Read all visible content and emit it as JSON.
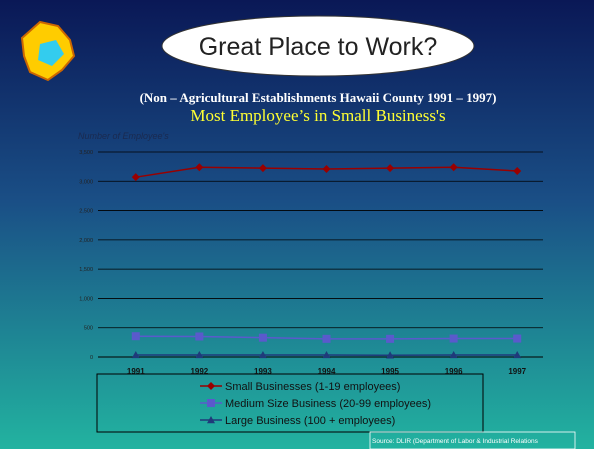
{
  "slide": {
    "title": "Great Place to Work?",
    "subtitle": "(Non – Agricultural Establishments Hawaii County 1991 – 1997)",
    "heading": "Most Employee’s in Small Business's",
    "source": "Source:  DLIR (Department of Labor & Industrial Relations"
  },
  "chart_data": {
    "type": "line",
    "y_label": "Number of Employee's",
    "categories": [
      "1991",
      "1992",
      "1993",
      "1994",
      "1995",
      "1996",
      "1997"
    ],
    "series": [
      {
        "name": "Small Businesses (1-19 employees)",
        "color": "#990000",
        "marker": "diamond",
        "values": [
          3070,
          3240,
          3225,
          3210,
          3225,
          3240,
          3175
        ]
      },
      {
        "name": "Medium Size Business (20-99 employees)",
        "color": "#5a5acc",
        "marker": "square",
        "values": [
          355,
          350,
          330,
          310,
          310,
          315,
          315
        ]
      },
      {
        "name": "Large Business (100 + employees)",
        "color": "#1f3a7a",
        "marker": "triangle",
        "values": [
          35,
          35,
          35,
          35,
          30,
          35,
          35
        ]
      }
    ],
    "ylim": [
      0,
      3500
    ],
    "yticks": [
      0,
      500,
      {
        "value": 1000,
        "label": "1,000"
      },
      {
        "value": 1500,
        "label": "1,500"
      },
      {
        "value": 2000,
        "label": "2,000"
      },
      {
        "value": 2500,
        "label": "2,500"
      },
      {
        "value": 3000,
        "label": "3,000"
      },
      {
        "value": 3500,
        "label": "3,500"
      }
    ],
    "grid": true
  }
}
